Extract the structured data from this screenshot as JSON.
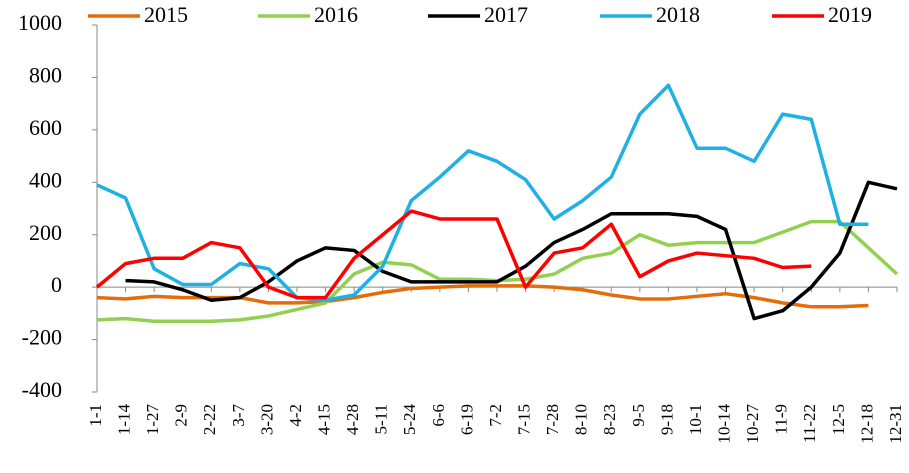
{
  "chart_data": {
    "type": "line",
    "categories": [
      "1-1",
      "1-14",
      "1-27",
      "2-9",
      "2-22",
      "3-7",
      "3-20",
      "4-2",
      "4-15",
      "4-28",
      "5-11",
      "5-24",
      "6-6",
      "6-19",
      "7-2",
      "7-15",
      "7-28",
      "8-10",
      "8-23",
      "9-5",
      "9-18",
      "10-1",
      "10-14",
      "10-27",
      "11-9",
      "11-22",
      "12-5",
      "12-18",
      "12-31"
    ],
    "series": [
      {
        "name": "2015",
        "color": "#e46c0a",
        "values": [
          -40,
          -45,
          -35,
          -40,
          -40,
          -40,
          -60,
          -60,
          -55,
          -40,
          -20,
          -5,
          0,
          5,
          5,
          5,
          0,
          -10,
          -30,
          -45,
          -45,
          -35,
          -25,
          -40,
          -60,
          -75,
          -75,
          -70,
          null
        ]
      },
      {
        "name": "2016",
        "color": "#92d050",
        "values": [
          -125,
          -120,
          -130,
          -130,
          -130,
          -125,
          -110,
          -85,
          -60,
          50,
          95,
          85,
          30,
          30,
          25,
          30,
          50,
          110,
          130,
          200,
          160,
          170,
          170,
          170,
          210,
          250,
          250,
          150,
          50
        ]
      },
      {
        "name": "2017",
        "color": "#000000",
        "values": [
          null,
          25,
          20,
          -10,
          -50,
          -40,
          20,
          100,
          150,
          140,
          60,
          20,
          20,
          20,
          20,
          80,
          170,
          220,
          280,
          280,
          280,
          270,
          220,
          -120,
          -90,
          0,
          130,
          400,
          375
        ]
      },
      {
        "name": "2018",
        "color": "#1fb0e6",
        "values": [
          390,
          340,
          70,
          10,
          10,
          90,
          70,
          -40,
          -50,
          -30,
          80,
          330,
          420,
          520,
          480,
          410,
          260,
          330,
          420,
          660,
          770,
          530,
          530,
          480,
          660,
          640,
          240,
          240,
          null
        ]
      },
      {
        "name": "2019",
        "color": "#ff0000",
        "values": [
          0,
          90,
          110,
          110,
          170,
          150,
          0,
          -40,
          -40,
          110,
          200,
          290,
          260,
          260,
          260,
          0,
          130,
          150,
          240,
          40,
          100,
          130,
          120,
          110,
          75,
          80,
          null,
          null,
          null
        ]
      }
    ],
    "ylim": [
      -400,
      1000
    ],
    "yticks": [
      -400,
      -200,
      0,
      200,
      400,
      600,
      800,
      1000
    ]
  }
}
